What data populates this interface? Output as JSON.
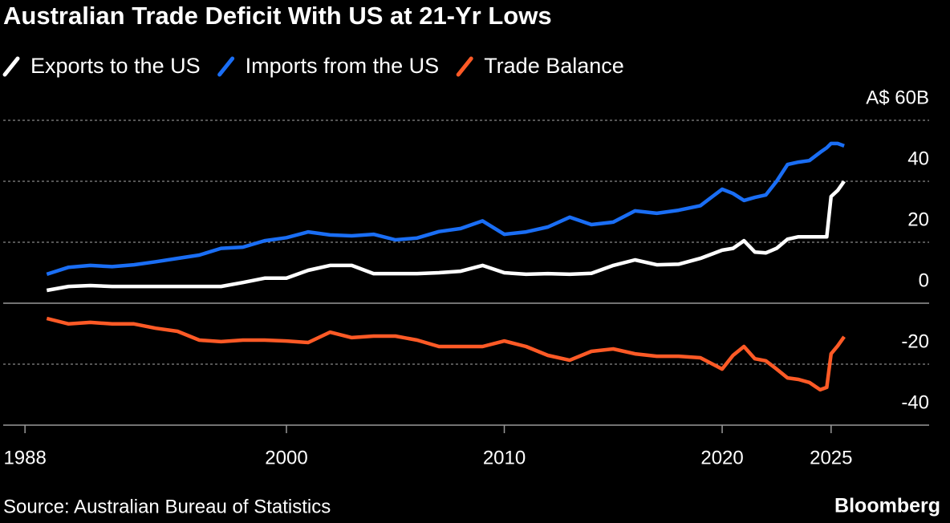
{
  "chart_data": {
    "type": "line",
    "title": "Australian Trade Deficit With US at 21-Yr Lows",
    "source": "Source: Australian Bureau of Statistics",
    "brand": "Bloomberg",
    "x": [
      1989,
      1990,
      1991,
      1992,
      1993,
      1994,
      1995,
      1996,
      1997,
      1998,
      1999,
      2000,
      2001,
      2002,
      2003,
      2004,
      2005,
      2006,
      2007,
      2008,
      2009,
      2010,
      2011,
      2012,
      2013,
      2014,
      2015,
      2016,
      2017,
      2018,
      2019,
      2020,
      2020.5,
      2021,
      2021.5,
      2022,
      2022.5,
      2023,
      2023.5,
      2024,
      2024.5,
      2024.8,
      2025,
      2025.3,
      2025.6
    ],
    "series": [
      {
        "name": "Exports to the US",
        "color": "#ffffff",
        "values": [
          4.2,
          5.5,
          5.8,
          5.5,
          5.5,
          5.5,
          5.5,
          5.5,
          5.5,
          6.8,
          8.2,
          8.2,
          10.8,
          12.4,
          12.4,
          9.7,
          9.7,
          9.7,
          10,
          10.5,
          12.4,
          10,
          9.5,
          9.7,
          9.5,
          9.8,
          12.4,
          14.2,
          12.6,
          12.8,
          14.7,
          17.4,
          18,
          20.5,
          16.8,
          16.5,
          18,
          21,
          21.8,
          21.8,
          21.8,
          21.8,
          35,
          37,
          40
        ]
      },
      {
        "name": "Imports from the US",
        "color": "#1a6ef5",
        "values": [
          9.5,
          11.8,
          12.4,
          12,
          12.6,
          13.6,
          14.7,
          15.8,
          18,
          18.4,
          20.5,
          21.5,
          23.4,
          22.4,
          22.1,
          22.6,
          20.8,
          21.4,
          23.5,
          24.5,
          27,
          22.6,
          23.4,
          25,
          28.2,
          25.8,
          26.6,
          30.3,
          29.5,
          30.5,
          32,
          37.4,
          36,
          33.7,
          34.7,
          35.5,
          40,
          45.5,
          46.3,
          46.8,
          49.5,
          51,
          52.4,
          52.4,
          51.6
        ]
      },
      {
        "name": "Trade Balance",
        "color": "#ff5a26",
        "values": [
          -5,
          -6.8,
          -6.3,
          -6.8,
          -6.8,
          -8.2,
          -9.2,
          -12.1,
          -12.6,
          -12.1,
          -12.1,
          -12.4,
          -12.9,
          -9.5,
          -11.3,
          -10.8,
          -10.8,
          -12.1,
          -14.2,
          -14.2,
          -14.2,
          -12.4,
          -14.2,
          -17.1,
          -18.7,
          -15.8,
          -15,
          -16.6,
          -17.4,
          -17.4,
          -17.9,
          -21.6,
          -17.1,
          -14.2,
          -18.2,
          -18.9,
          -21.6,
          -24.5,
          -25,
          -26,
          -28.4,
          -27.6,
          -16.6,
          -14,
          -11
        ]
      }
    ],
    "xlim": [
      1987,
      2029.5
    ],
    "xticks": [
      1988,
      2000,
      2010,
      2020,
      2025
    ],
    "ylim": [
      -40,
      60
    ],
    "yticks": [
      {
        "value": 60,
        "label": "A$ 60B"
      },
      40,
      20,
      0,
      -20,
      -40
    ],
    "grid": true
  }
}
